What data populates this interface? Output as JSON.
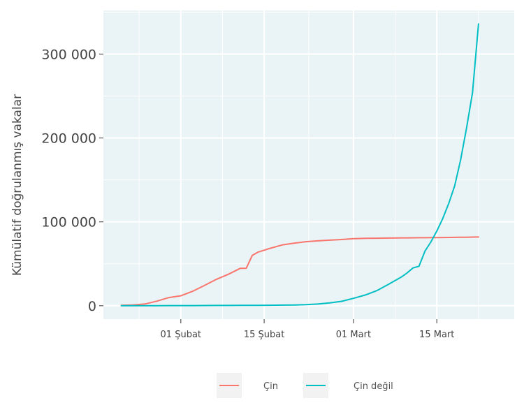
{
  "chart_data": {
    "type": "line",
    "title": "",
    "xlabel": "",
    "ylabel": "Kümülatif doğrulanmış vakalar",
    "x_ticks": [
      {
        "date": "2020-02-01",
        "label": "01 Şubat"
      },
      {
        "date": "2020-02-15",
        "label": "15 Şubat"
      },
      {
        "date": "2020-03-01",
        "label": "01 Mart"
      },
      {
        "date": "2020-03-15",
        "label": "15 Mart"
      }
    ],
    "y_ticks": [
      {
        "value": 0,
        "label": "0"
      },
      {
        "value": 100000,
        "label": "100 000"
      },
      {
        "value": 200000,
        "label": "200 000"
      },
      {
        "value": 300000,
        "label": "300 000"
      }
    ],
    "xlim": [
      "2020-01-19",
      "2020-03-28"
    ],
    "ylim": [
      -16000,
      352000
    ],
    "grid": true,
    "legend_position": "bottom",
    "x": [
      "2020-01-22",
      "2020-01-24",
      "2020-01-26",
      "2020-01-28",
      "2020-01-30",
      "2020-02-01",
      "2020-02-03",
      "2020-02-05",
      "2020-02-07",
      "2020-02-09",
      "2020-02-11",
      "2020-02-12",
      "2020-02-13",
      "2020-02-14",
      "2020-02-16",
      "2020-02-18",
      "2020-02-20",
      "2020-02-22",
      "2020-02-24",
      "2020-02-26",
      "2020-02-28",
      "2020-03-01",
      "2020-03-03",
      "2020-03-05",
      "2020-03-07",
      "2020-03-09",
      "2020-03-10",
      "2020-03-11",
      "2020-03-12",
      "2020-03-13",
      "2020-03-14",
      "2020-03-15",
      "2020-03-16",
      "2020-03-17",
      "2020-03-18",
      "2020-03-19",
      "2020-03-20",
      "2020-03-21",
      "2020-03-22"
    ],
    "series": [
      {
        "name": "Çin",
        "color": "#f8766d",
        "values": [
          548,
          900,
          2100,
          5500,
          9700,
          11800,
          17200,
          24300,
          31500,
          37500,
          44600,
          44700,
          59900,
          64000,
          68400,
          72400,
          74600,
          76300,
          77300,
          78200,
          78900,
          79900,
          80300,
          80500,
          80700,
          80900,
          80950,
          81000,
          81050,
          81100,
          81150,
          81200,
          81300,
          81400,
          81500,
          81600,
          81700,
          81800,
          81900
        ]
      },
      {
        "name": "Çin değil",
        "color": "#00bfc4",
        "values": [
          7,
          10,
          20,
          70,
          130,
          180,
          190,
          230,
          280,
          320,
          400,
          440,
          490,
          520,
          600,
          700,
          900,
          1200,
          2000,
          3300,
          5200,
          8800,
          12800,
          18200,
          26000,
          34000,
          39000,
          45000,
          47000,
          65000,
          76000,
          89000,
          104000,
          122000,
          143000,
          174000,
          212000,
          254000,
          336000
        ]
      }
    ]
  }
}
